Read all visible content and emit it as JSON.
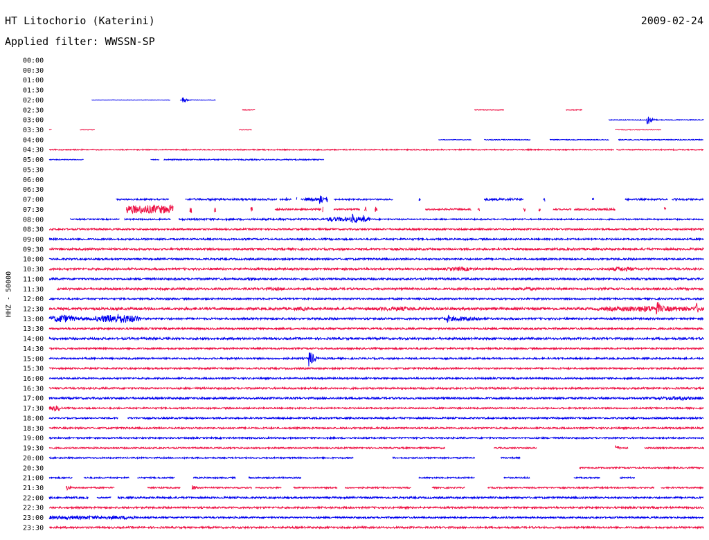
{
  "header": {
    "station": "HT Litochorio (Katerini)",
    "date": "2009-02-24",
    "filter_label": "Applied filter: WWSSN-SP"
  },
  "chart_data": {
    "type": "line",
    "title": "HT Litochorio (Katerini)",
    "ylabel": "HHZ - 50000",
    "row_colors": [
      "#0000ee",
      "#ee1144"
    ],
    "x_minutes": [
      0,
      30
    ],
    "rows": [
      {
        "label": "00:00",
        "segments": []
      },
      {
        "label": "00:30",
        "segments": []
      },
      {
        "label": "01:00",
        "segments": []
      },
      {
        "label": "01:30",
        "segments": []
      },
      {
        "label": "02:00",
        "segments": [
          [
            6.5,
            18.5,
            0.3
          ],
          [
            20,
            25.5,
            0.4
          ]
        ],
        "events": [
          [
            20.5,
            4
          ]
        ]
      },
      {
        "label": "02:30",
        "segments": [
          [
            29.5,
            31.5,
            0.4
          ],
          [
            65,
            69.5,
            0.4
          ],
          [
            79,
            81.5,
            0.4
          ]
        ]
      },
      {
        "label": "03:00",
        "segments": [
          [
            85.5,
            100,
            0.5
          ]
        ],
        "events": [
          [
            91.5,
            7
          ]
        ]
      },
      {
        "label": "03:30",
        "segments": [
          [
            0,
            0.4,
            0.3
          ],
          [
            4.7,
            7,
            0.4
          ],
          [
            29,
            31,
            0.4
          ],
          [
            86.5,
            93.5,
            0.4
          ]
        ]
      },
      {
        "label": "04:00",
        "segments": [
          [
            59.5,
            64.5,
            0.4
          ],
          [
            66.5,
            73.5,
            0.6
          ],
          [
            76.5,
            85.5,
            0.5
          ],
          [
            87,
            100,
            0.6
          ]
        ]
      },
      {
        "label": "04:30",
        "segments": [
          [
            0,
            86.3,
            0.8
          ],
          [
            86.7,
            100,
            0.8
          ]
        ]
      },
      {
        "label": "05:00",
        "segments": [
          [
            0,
            5.2,
            0.6
          ],
          [
            15.5,
            16.8,
            0.5
          ],
          [
            17.5,
            42,
            0.8
          ]
        ]
      },
      {
        "label": "05:30",
        "segments": []
      },
      {
        "label": "06:00",
        "segments": []
      },
      {
        "label": "06:30",
        "segments": []
      },
      {
        "label": "07:00",
        "segments": [
          [
            10.2,
            18.3,
            1
          ],
          [
            20.8,
            34.8,
            1.3
          ],
          [
            35.2,
            37,
            1
          ],
          [
            37.8,
            37.9,
            4
          ],
          [
            38.5,
            40,
            1
          ],
          [
            36.2,
            36.5,
            3
          ],
          [
            39,
            42.5,
            2
          ],
          [
            43.5,
            52.5,
            1
          ],
          [
            56.5,
            56.8,
            2
          ],
          [
            66.5,
            72.5,
            1.5
          ],
          [
            75.5,
            75.8,
            3
          ],
          [
            83,
            83.3,
            3
          ],
          [
            88,
            94.5,
            1.2
          ],
          [
            95.2,
            100,
            1.2
          ]
        ],
        "events": [
          [
            41.5,
            6
          ],
          [
            42.5,
            4
          ]
        ]
      },
      {
        "label": "07:30",
        "segments": [
          [
            11.8,
            18.9,
            6
          ],
          [
            21.5,
            21.8,
            5
          ],
          [
            25.2,
            25.5,
            4
          ],
          [
            30.8,
            31.1,
            4
          ],
          [
            34.5,
            41.5,
            1.2
          ],
          [
            41.8,
            41.9,
            4
          ],
          [
            43.5,
            47.5,
            1
          ],
          [
            48.2,
            48.5,
            4
          ],
          [
            49.8,
            50.2,
            4
          ],
          [
            57.5,
            64.5,
            1.2
          ],
          [
            65.5,
            65.8,
            3
          ],
          [
            72.5,
            72.8,
            3
          ],
          [
            74.8,
            75.1,
            3
          ],
          [
            77,
            79.8,
            1
          ],
          [
            80.2,
            86.5,
            1.5
          ],
          [
            94,
            94.3,
            3
          ]
        ]
      },
      {
        "label": "08:00",
        "segments": [
          [
            3.2,
            10.8,
            0.9
          ],
          [
            11.5,
            18.5,
            1
          ],
          [
            19.8,
            42.5,
            1.3
          ],
          [
            42.5,
            49,
            3
          ],
          [
            49,
            100,
            1
          ]
        ],
        "events": [
          [
            46.5,
            8
          ],
          [
            48,
            6
          ]
        ]
      },
      {
        "label": "08:30",
        "segments": [
          [
            0,
            100,
            1.2
          ]
        ]
      },
      {
        "label": "09:00",
        "segments": [
          [
            0,
            100,
            1.2
          ]
        ]
      },
      {
        "label": "09:30",
        "segments": [
          [
            0,
            100,
            1.5
          ]
        ]
      },
      {
        "label": "10:00",
        "segments": [
          [
            0,
            100,
            1.3
          ]
        ]
      },
      {
        "label": "10:30",
        "segments": [
          [
            0,
            100,
            1.5
          ]
        ],
        "bursts": [
          [
            60,
            66,
            3
          ],
          [
            85,
            90,
            3.5
          ]
        ]
      },
      {
        "label": "11:00",
        "segments": [
          [
            0,
            100,
            1.4
          ]
        ],
        "bursts": [
          [
            29.5,
            32,
            2.5
          ]
        ]
      },
      {
        "label": "11:30",
        "segments": [
          [
            1.2,
            100,
            1.5
          ]
        ],
        "bursts": [
          [
            30,
            40,
            2.2
          ],
          [
            70,
            76,
            2.5
          ]
        ]
      },
      {
        "label": "12:00",
        "segments": [
          [
            0,
            100,
            1.2
          ]
        ]
      },
      {
        "label": "12:30",
        "segments": [
          [
            0,
            100,
            1.8
          ]
        ],
        "bursts": [
          [
            37,
            40,
            3
          ],
          [
            46.5,
            60,
            3
          ],
          [
            62,
            65,
            2.5
          ],
          [
            83.5,
            100,
            4.5
          ]
        ],
        "events": [
          [
            93,
            10
          ],
          [
            99,
            8
          ]
        ]
      },
      {
        "label": "13:00",
        "segments": [
          [
            0,
            14,
            2
          ],
          [
            14,
            100,
            1.4
          ]
        ],
        "bursts": [
          [
            0,
            4,
            6
          ],
          [
            7,
            14,
            7
          ],
          [
            59,
            66,
            3.5
          ]
        ],
        "events": [
          [
            61,
            6
          ],
          [
            65.5,
            4
          ]
        ]
      },
      {
        "label": "13:30",
        "segments": [
          [
            0,
            100,
            1.3
          ]
        ]
      },
      {
        "label": "14:00",
        "segments": [
          [
            0,
            100,
            1.5
          ]
        ]
      },
      {
        "label": "14:30",
        "segments": [
          [
            0,
            100,
            1.2
          ]
        ]
      },
      {
        "label": "15:00",
        "segments": [
          [
            0,
            100,
            1.2
          ]
        ],
        "events": [
          [
            39.8,
            14
          ]
        ]
      },
      {
        "label": "15:30",
        "segments": [
          [
            0,
            100,
            1.2
          ]
        ]
      },
      {
        "label": "16:00",
        "segments": [
          [
            0,
            100,
            1.2
          ]
        ]
      },
      {
        "label": "16:30",
        "segments": [
          [
            0,
            100,
            1.3
          ]
        ]
      },
      {
        "label": "17:00",
        "segments": [
          [
            0,
            100,
            1.4
          ]
        ],
        "bursts": [
          [
            92,
            100,
            3
          ]
        ]
      },
      {
        "label": "17:30",
        "segments": [
          [
            0,
            100,
            1.1
          ]
        ],
        "bursts": [
          [
            0,
            2,
            4
          ]
        ]
      },
      {
        "label": "18:00",
        "segments": [
          [
            0,
            10.5,
            1
          ],
          [
            12,
            100,
            1.2
          ]
        ]
      },
      {
        "label": "18:30",
        "segments": [
          [
            0,
            100,
            1.2
          ]
        ]
      },
      {
        "label": "19:00",
        "segments": [
          [
            0,
            100,
            1.1
          ]
        ]
      },
      {
        "label": "19:30",
        "segments": [
          [
            0,
            60.5,
            1
          ],
          [
            68,
            74.5,
            1
          ],
          [
            86.5,
            88.5,
            1
          ],
          [
            91,
            100,
            1
          ]
        ],
        "events": [
          [
            86.5,
            5
          ]
        ]
      },
      {
        "label": "20:00",
        "segments": [
          [
            0,
            46.5,
            1
          ],
          [
            52.5,
            65,
            1
          ],
          [
            69,
            72,
            1
          ]
        ]
      },
      {
        "label": "20:30",
        "segments": [
          [
            81,
            100,
            1
          ]
        ]
      },
      {
        "label": "21:00",
        "segments": [
          [
            0,
            3.5,
            1
          ],
          [
            5.3,
            12.2,
            1
          ],
          [
            13.5,
            19.2,
            1
          ],
          [
            22,
            28.5,
            1
          ],
          [
            30.5,
            38.5,
            1
          ],
          [
            56.5,
            65,
            1
          ],
          [
            69.5,
            73.5,
            1
          ],
          [
            80.2,
            84.2,
            1
          ],
          [
            87.2,
            89.5,
            1
          ]
        ],
        "events": [
          [
            29.7,
            4
          ]
        ]
      },
      {
        "label": "21:30",
        "segments": [
          [
            2.6,
            10,
            1
          ],
          [
            15,
            20,
            1
          ],
          [
            21.8,
            31,
            1
          ],
          [
            31.5,
            35.5,
            1
          ],
          [
            37.3,
            44,
            1
          ],
          [
            45.2,
            55.3,
            1
          ],
          [
            58.5,
            63.5,
            1
          ],
          [
            67,
            92.5,
            1
          ],
          [
            93.5,
            100,
            1
          ]
        ],
        "events": [
          [
            2.6,
            5
          ],
          [
            21.8,
            5
          ]
        ]
      },
      {
        "label": "22:00",
        "segments": [
          [
            0,
            6,
            1.3
          ],
          [
            7.3,
            9.5,
            1
          ],
          [
            10.5,
            100,
            1.3
          ]
        ]
      },
      {
        "label": "22:30",
        "segments": [
          [
            0,
            100,
            1.3
          ]
        ]
      },
      {
        "label": "23:00",
        "segments": [
          [
            0,
            13.3,
            2.5
          ],
          [
            13.3,
            100,
            1.2
          ]
        ]
      },
      {
        "label": "23:30",
        "segments": [
          [
            0,
            100,
            1.3
          ]
        ]
      }
    ]
  }
}
